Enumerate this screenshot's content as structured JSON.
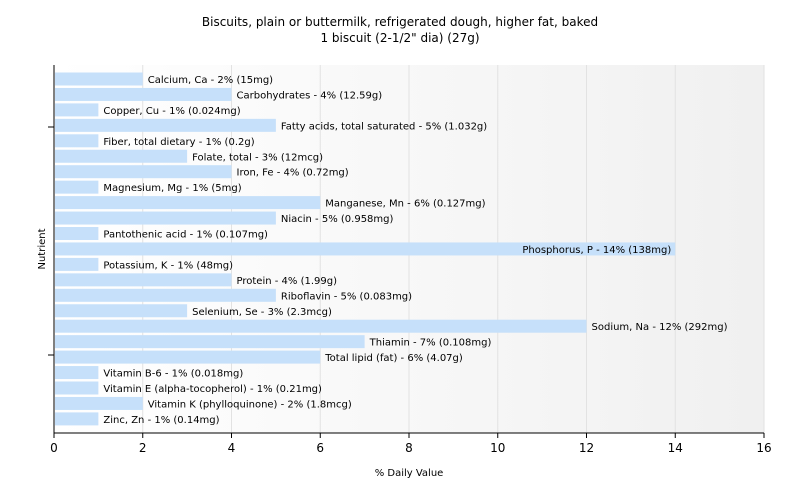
{
  "chart_data": {
    "type": "bar",
    "orientation": "horizontal",
    "title": "Biscuits, plain or buttermilk, refrigerated dough, higher fat, baked",
    "subtitle": "1 biscuit (2-1/2\" dia) (27g)",
    "xlabel": "% Daily Value",
    "ylabel": "Nutrient",
    "xlim": [
      0,
      16
    ],
    "xticks": [
      "0",
      "2",
      "4",
      "6",
      "8",
      "10",
      "12",
      "14",
      "16"
    ],
    "grid": true,
    "bar_color": "#c6e0fa",
    "categories": [
      "Calcium, Ca",
      "Carbohydrates",
      "Copper, Cu",
      "Fatty acids, total saturated",
      "Fiber, total dietary",
      "Folate, total",
      "Iron, Fe",
      "Magnesium, Mg",
      "Manganese, Mn",
      "Niacin",
      "Pantothenic acid",
      "Phosphorus, P",
      "Potassium, K",
      "Protein",
      "Riboflavin",
      "Selenium, Se",
      "Sodium, Na",
      "Thiamin",
      "Total lipid (fat)",
      "Vitamin B-6",
      "Vitamin E (alpha-tocopherol)",
      "Vitamin K (phylloquinone)",
      "Zinc, Zn"
    ],
    "values": [
      2,
      4,
      1,
      5,
      1,
      3,
      4,
      1,
      6,
      5,
      1,
      14,
      1,
      4,
      5,
      3,
      12,
      7,
      6,
      1,
      1,
      2,
      1
    ],
    "labels": [
      "Calcium, Ca - 2% (15mg)",
      "Carbohydrates - 4% (12.59g)",
      "Copper, Cu - 1% (0.024mg)",
      "Fatty acids, total saturated - 5% (1.032g)",
      "Fiber, total dietary - 1% (0.2g)",
      "Folate, total - 3% (12mcg)",
      "Iron, Fe - 4% (0.72mg)",
      "Magnesium, Mg - 1% (5mg)",
      "Manganese, Mn - 6% (0.127mg)",
      "Niacin - 5% (0.958mg)",
      "Pantothenic acid - 1% (0.107mg)",
      "Phosphorus, P - 14% (138mg)",
      "Potassium, K - 1% (48mg)",
      "Protein - 4% (1.99g)",
      "Riboflavin - 5% (0.083mg)",
      "Selenium, Se - 3% (2.3mcg)",
      "Sodium, Na - 12% (292mg)",
      "Thiamin - 7% (0.108mg)",
      "Total lipid (fat) - 6% (4.07g)",
      "Vitamin B-6 - 1% (0.018mg)",
      "Vitamin E (alpha-tocopherol) - 1% (0.21mg)",
      "Vitamin K (phylloquinone) - 2% (1.8mcg)",
      "Zinc, Zn - 1% (0.14mg)"
    ]
  }
}
